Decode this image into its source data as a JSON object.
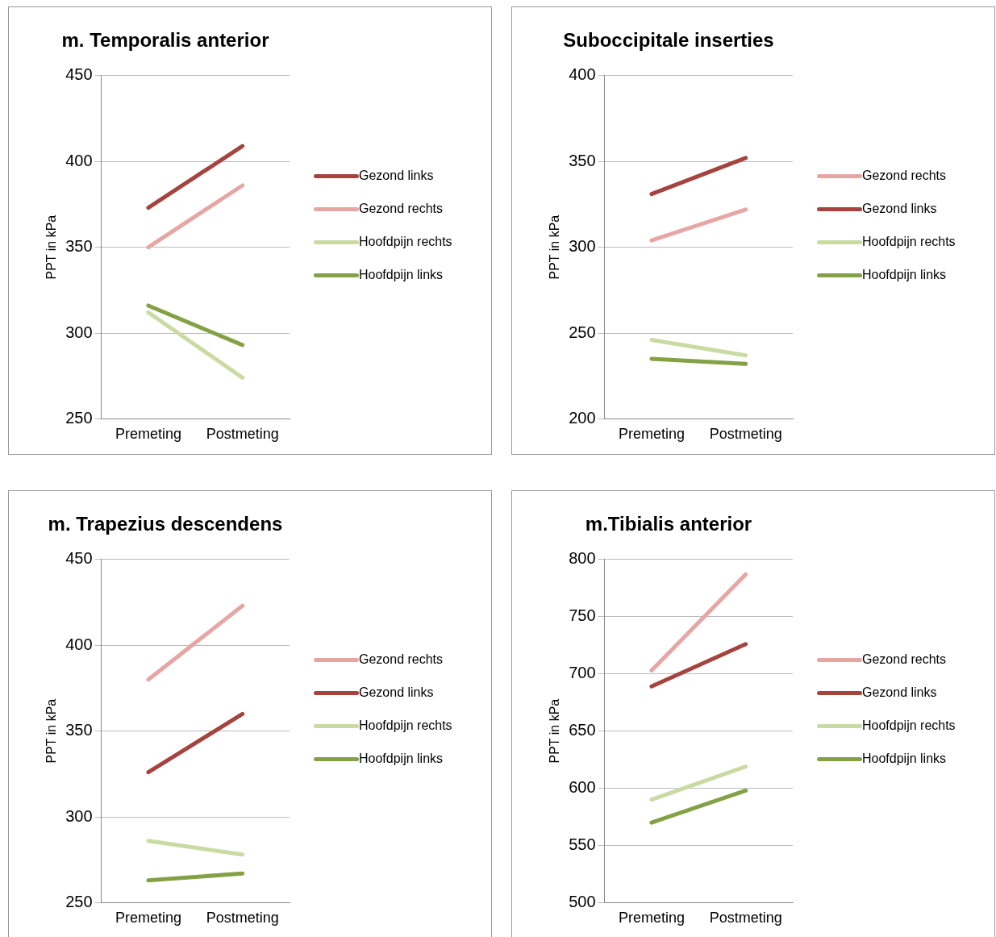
{
  "chart_data": [
    {
      "type": "line",
      "title": "m. Temporalis anterior",
      "ylabel": "PPT in kPa",
      "categories": [
        "Premeting",
        "Postmeting"
      ],
      "ylim": [
        250,
        450
      ],
      "yticks": [
        250,
        300,
        350,
        400,
        450
      ],
      "grid": "y",
      "legend": "right",
      "marker": "none",
      "line_style": "solid",
      "series": [
        {
          "name": "Gezond links",
          "color": "#a5443f",
          "values": [
            373,
            409
          ]
        },
        {
          "name": "Gezond rechts",
          "color": "#e6a6a4",
          "values": [
            350,
            386
          ]
        },
        {
          "name": "Hoofdpijn rechts",
          "color": "#c9dba2",
          "values": [
            312,
            274
          ]
        },
        {
          "name": "Hoofdpijn links",
          "color": "#84a146",
          "values": [
            316,
            293
          ]
        }
      ]
    },
    {
      "type": "line",
      "title": "Suboccipitale inserties",
      "ylabel": "PPT in kPa",
      "categories": [
        "Premeting",
        "Postmeting"
      ],
      "ylim": [
        200,
        400
      ],
      "yticks": [
        200,
        250,
        300,
        350,
        400
      ],
      "grid": "y",
      "legend": "right",
      "marker": "none",
      "line_style": "solid",
      "series": [
        {
          "name": "Gezond rechts",
          "color": "#e6a6a4",
          "values": [
            304,
            322
          ]
        },
        {
          "name": "Gezond links",
          "color": "#a5443f",
          "values": [
            331,
            352
          ]
        },
        {
          "name": "Hoofdpijn rechts",
          "color": "#c9dba2",
          "values": [
            246,
            237
          ]
        },
        {
          "name": "Hoofdpijn links",
          "color": "#84a146",
          "values": [
            235,
            232
          ]
        }
      ]
    },
    {
      "type": "line",
      "title": "m. Trapezius descendens",
      "ylabel": "PPT in kPa",
      "categories": [
        "Premeting",
        "Postmeting"
      ],
      "ylim": [
        250,
        450
      ],
      "yticks": [
        250,
        300,
        350,
        400,
        450
      ],
      "grid": "y",
      "legend": "right",
      "marker": "none",
      "line_style": "solid",
      "series": [
        {
          "name": "Gezond rechts",
          "color": "#e6a6a4",
          "values": [
            380,
            423
          ]
        },
        {
          "name": "Gezond links",
          "color": "#a5443f",
          "values": [
            326,
            360
          ]
        },
        {
          "name": "Hoofdpijn rechts",
          "color": "#c9dba2",
          "values": [
            286,
            278
          ]
        },
        {
          "name": "Hoofdpijn links",
          "color": "#84a146",
          "values": [
            263,
            267
          ]
        }
      ]
    },
    {
      "type": "line",
      "title": "m.Tibialis anterior",
      "ylabel": "PPT in kPa",
      "categories": [
        "Premeting",
        "Postmeting"
      ],
      "ylim": [
        500,
        800
      ],
      "yticks": [
        500,
        550,
        600,
        650,
        700,
        750,
        800
      ],
      "grid": "y",
      "legend": "right",
      "marker": "none",
      "line_style": "solid",
      "series": [
        {
          "name": "Gezond rechts",
          "color": "#e6a6a4",
          "values": [
            703,
            787
          ]
        },
        {
          "name": "Gezond links",
          "color": "#a5443f",
          "values": [
            689,
            726
          ]
        },
        {
          "name": "Hoofdpijn rechts",
          "color": "#c9dba2",
          "values": [
            590,
            619
          ]
        },
        {
          "name": "Hoofdpijn links",
          "color": "#84a146",
          "values": [
            570,
            598
          ]
        }
      ]
    }
  ]
}
